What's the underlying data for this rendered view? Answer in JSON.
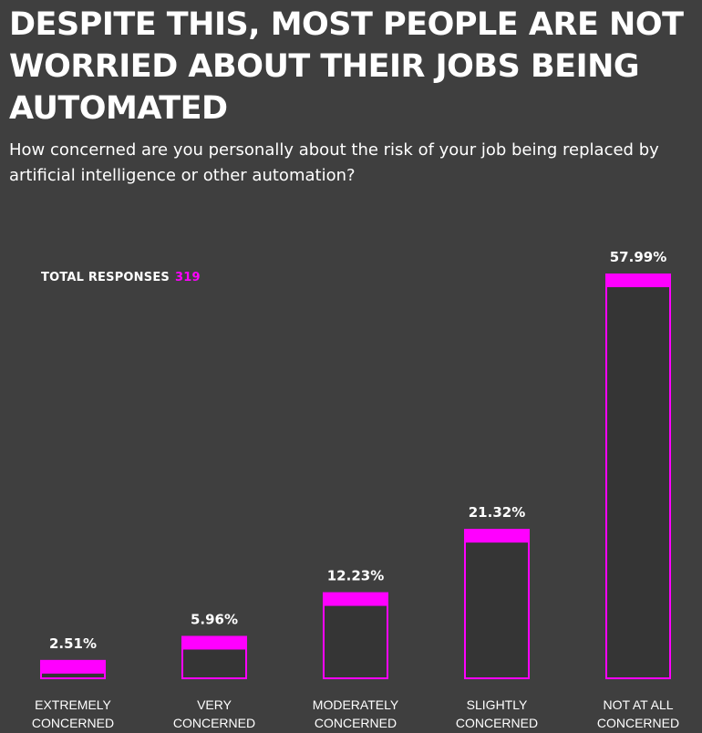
{
  "header": {
    "title": "DESPITE THIS, MOST PEOPLE ARE NOT\nWORRIED ABOUT THEIR JOBS BEING\nAUTOMATED",
    "subtitle": "How concerned are you personally about the risk of your job being replaced by artificial intelligence or other automation?"
  },
  "total": {
    "label": "TOTAL RESPONSES",
    "value": "319"
  },
  "colors": {
    "accent": "#ff00ff",
    "bar_fill": "#353535",
    "background": "#3f3f3f"
  },
  "chart_data": {
    "type": "bar",
    "categories": [
      "EXTREMELY CONCERNED",
      "VERY CONCERNED",
      "MODERATELY CONCERNED",
      "SLIGHTLY CONCERNED",
      "NOT AT ALL CONCERNED"
    ],
    "category_lines": [
      [
        "EXTREMELY",
        "CONCERNED"
      ],
      [
        "VERY",
        "CONCERNED"
      ],
      [
        "MODERATELY",
        "CONCERNED"
      ],
      [
        "SLIGHTLY",
        "CONCERNED"
      ],
      [
        "NOT AT ALL",
        "CONCERNED"
      ]
    ],
    "values": [
      2.51,
      5.96,
      12.23,
      21.32,
      57.99
    ],
    "value_labels": [
      "2.51%",
      "5.96%",
      "12.23%",
      "21.32%",
      "57.99%"
    ],
    "ylim": [
      0,
      57.99
    ],
    "grid": false,
    "legend": "none"
  }
}
